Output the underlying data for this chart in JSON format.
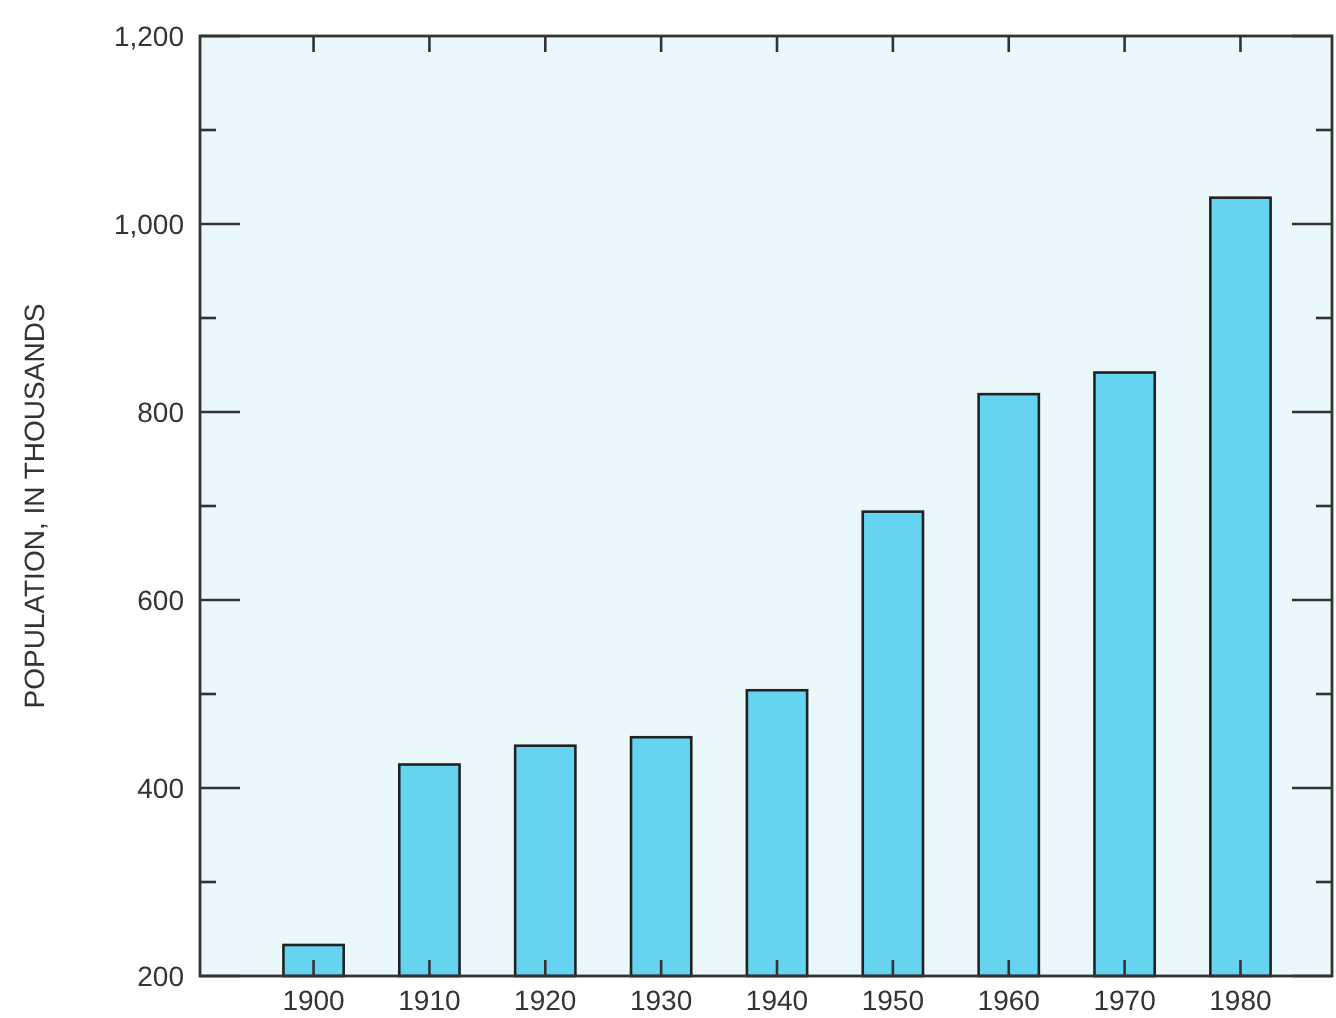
{
  "chart_data": {
    "type": "bar",
    "ylabel": "POPULATION, IN THOUSANDS",
    "categories": [
      "1900",
      "1910",
      "1920",
      "1930",
      "1940",
      "1950",
      "1960",
      "1970",
      "1980"
    ],
    "values": [
      233,
      425,
      445,
      454,
      504,
      694,
      819,
      842,
      1028
    ],
    "color": "#66d4f0",
    "ylim": [
      200,
      1200
    ],
    "yticks": [
      200,
      {
        "value": 300,
        "label": null
      },
      400,
      {
        "value": 500,
        "label": null
      },
      600,
      {
        "value": 700,
        "label": null
      },
      800,
      {
        "value": 900,
        "label": null
      },
      {
        "value": 1000,
        "label": "1,000"
      },
      {
        "value": 1100,
        "label": null
      },
      {
        "value": 1200,
        "label": "1,200"
      }
    ],
    "grid": false
  }
}
